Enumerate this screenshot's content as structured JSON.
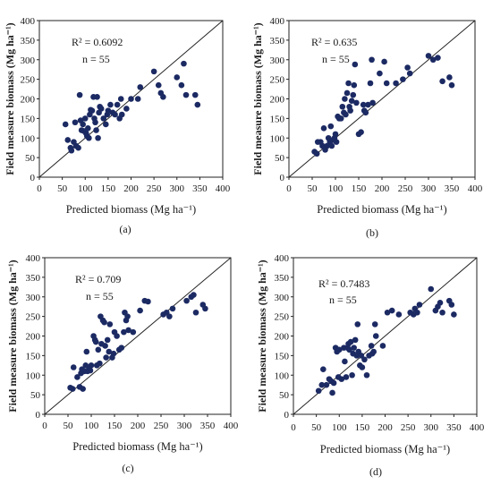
{
  "chart_data": [
    {
      "type": "scatter",
      "panel_label": "(a)",
      "xlabel": "Predicted biomass (Mg ha⁻¹)",
      "ylabel": "Field measure biomass (Mg ha⁻¹)",
      "xlim": [
        0,
        400
      ],
      "ylim": [
        0,
        400
      ],
      "xticks": [
        0,
        50,
        100,
        150,
        200,
        250,
        300,
        350,
        400
      ],
      "yticks": [
        0,
        50,
        100,
        150,
        200,
        250,
        300,
        350,
        400
      ],
      "annotations": [
        "R² = 0.6092",
        "n = 55"
      ],
      "reference_line": "1:1",
      "grid": false,
      "marker_color": "#1c2a63",
      "points": [
        [
          57,
          135
        ],
        [
          62,
          95
        ],
        [
          68,
          75
        ],
        [
          70,
          68
        ],
        [
          75,
          90
        ],
        [
          78,
          140
        ],
        [
          80,
          80
        ],
        [
          85,
          75
        ],
        [
          88,
          210
        ],
        [
          90,
          145
        ],
        [
          92,
          120
        ],
        [
          95,
          135
        ],
        [
          97,
          118
        ],
        [
          100,
          150
        ],
        [
          102,
          112
        ],
        [
          104,
          105
        ],
        [
          106,
          125
        ],
        [
          108,
          100
        ],
        [
          110,
          160
        ],
        [
          112,
          172
        ],
        [
          115,
          170
        ],
        [
          118,
          205
        ],
        [
          120,
          150
        ],
        [
          122,
          140
        ],
        [
          124,
          120
        ],
        [
          126,
          205
        ],
        [
          128,
          100
        ],
        [
          130,
          165
        ],
        [
          132,
          180
        ],
        [
          135,
          175
        ],
        [
          140,
          150
        ],
        [
          145,
          135
        ],
        [
          148,
          160
        ],
        [
          150,
          170
        ],
        [
          155,
          185
        ],
        [
          160,
          165
        ],
        [
          165,
          160
        ],
        [
          170,
          185
        ],
        [
          175,
          150
        ],
        [
          178,
          200
        ],
        [
          180,
          160
        ],
        [
          190,
          175
        ],
        [
          200,
          200
        ],
        [
          215,
          200
        ],
        [
          220,
          230
        ],
        [
          250,
          270
        ],
        [
          260,
          235
        ],
        [
          265,
          215
        ],
        [
          270,
          205
        ],
        [
          300,
          255
        ],
        [
          310,
          235
        ],
        [
          315,
          290
        ],
        [
          320,
          210
        ],
        [
          340,
          210
        ],
        [
          345,
          185
        ]
      ]
    },
    {
      "type": "scatter",
      "panel_label": "(b)",
      "xlabel": "Predicted biomass (Mg ha⁻¹)",
      "ylabel": "Field measure biomass (Mg ha⁻¹)",
      "xlim": [
        0,
        400
      ],
      "ylim": [
        0,
        400
      ],
      "xticks": [
        0,
        50,
        100,
        150,
        200,
        250,
        300,
        350,
        400
      ],
      "yticks": [
        0,
        50,
        100,
        150,
        200,
        250,
        300,
        350,
        400
      ],
      "annotations": [
        "R² = 0.635",
        "n = 55"
      ],
      "reference_line": "1:1",
      "grid": false,
      "marker_color": "#1c2a63",
      "points": [
        [
          55,
          65
        ],
        [
          60,
          60
        ],
        [
          62,
          90
        ],
        [
          68,
          90
        ],
        [
          72,
          80
        ],
        [
          75,
          125
        ],
        [
          78,
          70
        ],
        [
          82,
          80
        ],
        [
          85,
          100
        ],
        [
          88,
          90
        ],
        [
          90,
          130
        ],
        [
          92,
          80
        ],
        [
          95,
          95
        ],
        [
          98,
          100
        ],
        [
          100,
          110
        ],
        [
          102,
          90
        ],
        [
          105,
          155
        ],
        [
          108,
          150
        ],
        [
          110,
          150
        ],
        [
          112,
          150
        ],
        [
          115,
          180
        ],
        [
          118,
          165
        ],
        [
          120,
          200
        ],
        [
          122,
          160
        ],
        [
          125,
          215
        ],
        [
          128,
          240
        ],
        [
          130,
          180
        ],
        [
          132,
          170
        ],
        [
          135,
          195
        ],
        [
          138,
          210
        ],
        [
          140,
          235
        ],
        [
          142,
          288
        ],
        [
          145,
          190
        ],
        [
          150,
          110
        ],
        [
          155,
          115
        ],
        [
          160,
          185
        ],
        [
          162,
          170
        ],
        [
          165,
          165
        ],
        [
          170,
          185
        ],
        [
          175,
          240
        ],
        [
          178,
          300
        ],
        [
          180,
          190
        ],
        [
          195,
          265
        ],
        [
          205,
          295
        ],
        [
          210,
          240
        ],
        [
          230,
          240
        ],
        [
          245,
          250
        ],
        [
          255,
          280
        ],
        [
          260,
          265
        ],
        [
          300,
          310
        ],
        [
          310,
          300
        ],
        [
          320,
          305
        ],
        [
          330,
          245
        ],
        [
          345,
          255
        ],
        [
          350,
          235
        ]
      ]
    },
    {
      "type": "scatter",
      "panel_label": "(c)",
      "xlabel": "Predicted biomass (Mg ha⁻¹)",
      "ylabel": "Field measure biomass (Mg ha⁻¹)",
      "xlim": [
        0,
        400
      ],
      "ylim": [
        0,
        400
      ],
      "xticks": [
        0,
        50,
        100,
        150,
        200,
        250,
        300,
        350,
        400
      ],
      "yticks": [
        0,
        50,
        100,
        150,
        200,
        250,
        300,
        350,
        400
      ],
      "annotations": [
        "R² = 0.709",
        "n = 55"
      ],
      "reference_line": "1:1",
      "grid": false,
      "marker_color": "#1c2a63",
      "points": [
        [
          55,
          68
        ],
        [
          60,
          65
        ],
        [
          62,
          120
        ],
        [
          70,
          95
        ],
        [
          75,
          70
        ],
        [
          78,
          105
        ],
        [
          80,
          115
        ],
        [
          82,
          65
        ],
        [
          85,
          110
        ],
        [
          88,
          125
        ],
        [
          90,
          160
        ],
        [
          92,
          110
        ],
        [
          95,
          120
        ],
        [
          98,
          112
        ],
        [
          100,
          125
        ],
        [
          105,
          200
        ],
        [
          108,
          190
        ],
        [
          110,
          185
        ],
        [
          112,
          125
        ],
        [
          115,
          165
        ],
        [
          118,
          130
        ],
        [
          120,
          250
        ],
        [
          122,
          180
        ],
        [
          125,
          240
        ],
        [
          128,
          235
        ],
        [
          130,
          175
        ],
        [
          132,
          145
        ],
        [
          135,
          190
        ],
        [
          138,
          160
        ],
        [
          140,
          230
        ],
        [
          145,
          145
        ],
        [
          148,
          155
        ],
        [
          150,
          210
        ],
        [
          155,
          200
        ],
        [
          160,
          165
        ],
        [
          165,
          170
        ],
        [
          170,
          210
        ],
        [
          172,
          260
        ],
        [
          175,
          240
        ],
        [
          178,
          250
        ],
        [
          180,
          215
        ],
        [
          190,
          210
        ],
        [
          205,
          265
        ],
        [
          215,
          290
        ],
        [
          222,
          288
        ],
        [
          255,
          255
        ],
        [
          262,
          260
        ],
        [
          268,
          250
        ],
        [
          275,
          270
        ],
        [
          305,
          290
        ],
        [
          315,
          300
        ],
        [
          320,
          305
        ],
        [
          325,
          260
        ],
        [
          340,
          280
        ],
        [
          345,
          270
        ]
      ]
    },
    {
      "type": "scatter",
      "panel_label": "(d)",
      "xlabel": "Predicted biomass (Mg ha⁻¹)",
      "ylabel": "Field measure biomass (Mg ha⁻¹)",
      "xlim": [
        0,
        400
      ],
      "ylim": [
        0,
        400
      ],
      "xticks": [
        0,
        50,
        100,
        150,
        200,
        250,
        300,
        350,
        400
      ],
      "yticks": [
        0,
        50,
        100,
        150,
        200,
        250,
        300,
        350,
        400
      ],
      "annotations": [
        "R² = 0.7483",
        "n = 55"
      ],
      "reference_line": "1:1",
      "grid": false,
      "marker_color": "#1c2a63",
      "points": [
        [
          55,
          60
        ],
        [
          62,
          75
        ],
        [
          65,
          115
        ],
        [
          72,
          75
        ],
        [
          78,
          90
        ],
        [
          82,
          85
        ],
        [
          85,
          55
        ],
        [
          88,
          80
        ],
        [
          92,
          170
        ],
        [
          95,
          160
        ],
        [
          98,
          95
        ],
        [
          100,
          165
        ],
        [
          105,
          90
        ],
        [
          110,
          170
        ],
        [
          112,
          135
        ],
        [
          115,
          95
        ],
        [
          118,
          170
        ],
        [
          120,
          180
        ],
        [
          122,
          165
        ],
        [
          125,
          185
        ],
        [
          128,
          100
        ],
        [
          130,
          155
        ],
        [
          132,
          170
        ],
        [
          135,
          190
        ],
        [
          138,
          150
        ],
        [
          140,
          230
        ],
        [
          142,
          160
        ],
        [
          145,
          125
        ],
        [
          148,
          150
        ],
        [
          150,
          120
        ],
        [
          155,
          140
        ],
        [
          160,
          100
        ],
        [
          165,
          150
        ],
        [
          170,
          175
        ],
        [
          172,
          155
        ],
        [
          175,
          160
        ],
        [
          178,
          230
        ],
        [
          180,
          200
        ],
        [
          195,
          175
        ],
        [
          205,
          260
        ],
        [
          215,
          265
        ],
        [
          230,
          255
        ],
        [
          255,
          260
        ],
        [
          262,
          255
        ],
        [
          265,
          270
        ],
        [
          270,
          260
        ],
        [
          275,
          280
        ],
        [
          300,
          320
        ],
        [
          310,
          265
        ],
        [
          315,
          275
        ],
        [
          320,
          285
        ],
        [
          325,
          260
        ],
        [
          340,
          290
        ],
        [
          345,
          280
        ],
        [
          350,
          255
        ]
      ]
    }
  ]
}
